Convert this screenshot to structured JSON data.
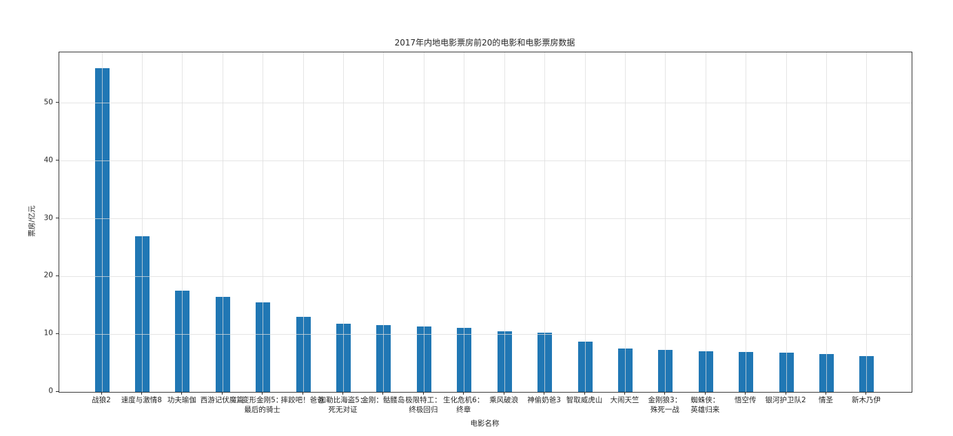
{
  "figure": {
    "title": "2017年内地电影票房前20的电影和电影票房数据",
    "xlabel": "电影名称",
    "ylabel": "票房/亿元"
  },
  "chart_data": {
    "type": "bar",
    "title": "2017年内地电影票房前20的电影和电影票房数据",
    "xlabel": "电影名称",
    "ylabel": "票房/亿元",
    "categories": [
      "战狼2",
      "速度与激情8",
      "功夫瑜伽",
      "西游记伏魔篇",
      "变形金刚5：\n最后的骑士",
      "摔跤吧！爸爸",
      "加勒比海盗5：\n死无对证",
      "金刚：骷髅岛",
      "极限特工：\n终极回归",
      "生化危机6：\n终章",
      "乘风破浪",
      "神偷奶爸3",
      "智取威虎山",
      "大闹天竺",
      "金刚狼3：\n殊死一战",
      "蜘蛛侠：\n英雄归来",
      "悟空传",
      "银河护卫队2",
      "情圣",
      "新木乃伊"
    ],
    "values": [
      56.01,
      26.94,
      17.53,
      16.49,
      15.45,
      12.96,
      11.8,
      11.61,
      11.28,
      11.12,
      10.49,
      10.3,
      8.75,
      7.55,
      7.32,
      6.99,
      6.88,
      6.86,
      6.58,
      6.23
    ],
    "yticks": [
      0,
      10,
      20,
      30,
      40,
      50
    ],
    "ylim": [
      0,
      58.81
    ],
    "grid": true,
    "legend": "none",
    "colors": {
      "bar": "#2077b4",
      "grid": "#e5e5e5",
      "axis": "#3a3a3a",
      "text": "#262626",
      "background": "#ffffff"
    }
  }
}
